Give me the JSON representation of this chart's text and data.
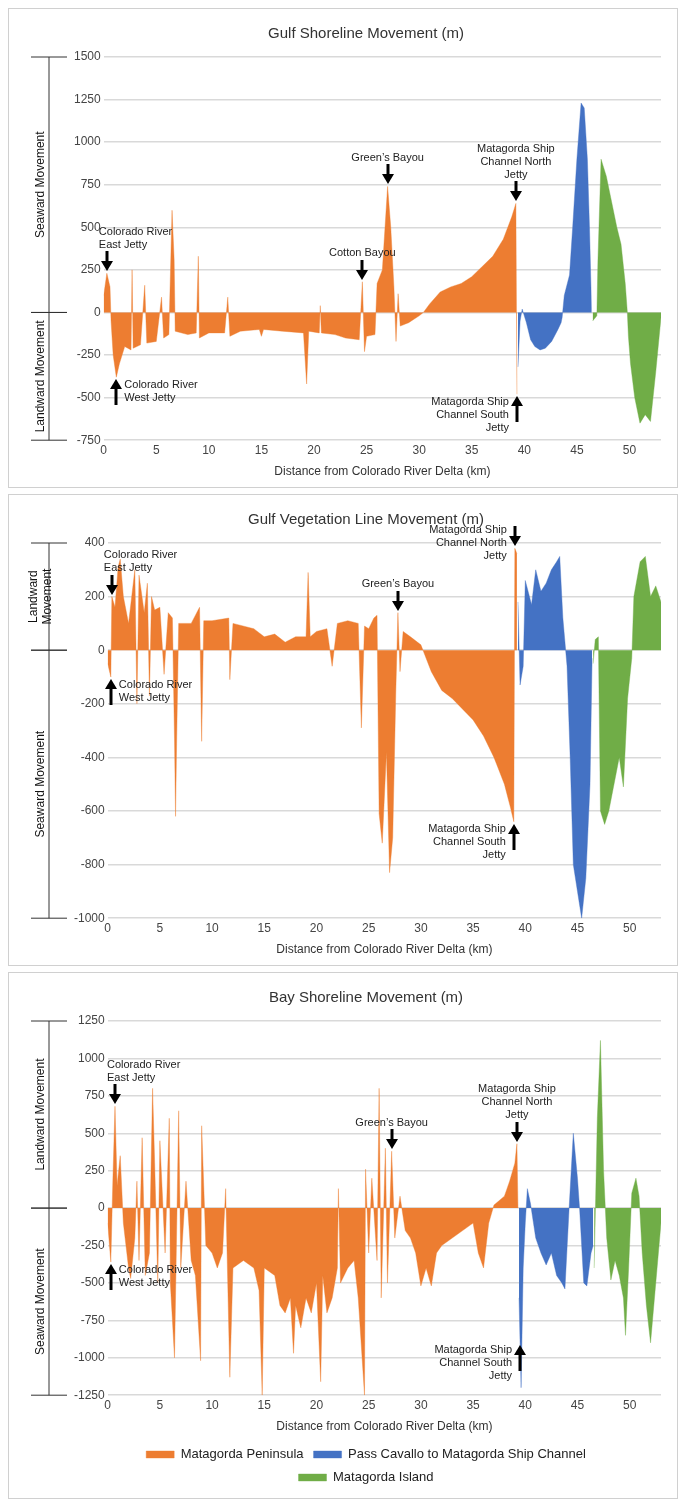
{
  "chart_data": [
    {
      "type": "area",
      "title": "Gulf Shoreline Movement (m)",
      "xlabel": "Distance from Colorado River Delta (km)",
      "xlim": [
        0,
        53
      ],
      "xticks": [
        0,
        5,
        10,
        15,
        20,
        25,
        30,
        35,
        40,
        45,
        50
      ],
      "ylim": [
        -750,
        1500
      ],
      "yticks": [
        -750,
        -500,
        -250,
        0,
        250,
        500,
        750,
        1000,
        1250,
        1500
      ],
      "grid": "y",
      "legend": false,
      "series": [
        {
          "color": "#ed7d31",
          "x": [
            0,
            0.3,
            0.6,
            0.7,
            0.9,
            1.2,
            1.5,
            2,
            2.6,
            2.7,
            2.8,
            3.5,
            3.9,
            4.1,
            5,
            5.5,
            5.7,
            6.2,
            6.5,
            6.7,
            6.8,
            8,
            8.8,
            9,
            9.1,
            10,
            11.5,
            11.8,
            12,
            13,
            14.8,
            15,
            15.2,
            17,
            19,
            19.3,
            19.5,
            20.5,
            20.6,
            20.7,
            22,
            23,
            24.3,
            24.6,
            24.8,
            25,
            25.8,
            26,
            26.5,
            27,
            27.3,
            27.6,
            27.8,
            28,
            28.2,
            29,
            30,
            30.4,
            31,
            32,
            33,
            34,
            35,
            36,
            37,
            38,
            38.8,
            39.2,
            39.3
          ],
          "values": [
            100,
            230,
            150,
            -50,
            -250,
            -380,
            -300,
            -200,
            -220,
            250,
            -210,
            -190,
            160,
            -180,
            -170,
            90,
            -150,
            -130,
            600,
            310,
            -110,
            -130,
            -120,
            330,
            -150,
            -120,
            -120,
            90,
            -140,
            -110,
            -100,
            -140,
            -100,
            -110,
            -120,
            -420,
            -110,
            -120,
            40,
            -120,
            -130,
            -150,
            -160,
            180,
            -230,
            -140,
            -130,
            170,
            250,
            740,
            500,
            150,
            -170,
            110,
            -80,
            -60,
            -20,
            0,
            50,
            120,
            150,
            170,
            210,
            270,
            330,
            430,
            560,
            640,
            -480
          ]
        },
        {
          "color": "#4472c4",
          "x": [
            39.4,
            39.6,
            39.8,
            40.2,
            40.6,
            41,
            41.5,
            42,
            42.6,
            43.2,
            43.5,
            43.6,
            43.8,
            44.3,
            44.6,
            45,
            45.4,
            45.7,
            46,
            46.2,
            46.4
          ],
          "values": [
            -320,
            -50,
            20,
            -60,
            -160,
            -200,
            -220,
            -210,
            -170,
            -100,
            -60,
            -30,
            100,
            220,
            500,
            900,
            1230,
            1200,
            900,
            500,
            0
          ]
        },
        {
          "color": "#70ad47",
          "x": [
            46.5,
            46.9,
            47,
            47.3,
            47.8,
            48.3,
            48.8,
            49.2,
            49.6,
            49.8,
            49.9,
            50.1,
            50.5,
            51,
            51.5,
            52,
            52.5,
            53
          ],
          "values": [
            -50,
            -20,
            300,
            900,
            800,
            650,
            500,
            400,
            170,
            0,
            -140,
            -300,
            -500,
            -650,
            -600,
            -640,
            -350,
            -30
          ]
        }
      ],
      "annotations": [
        "Seaward Movement",
        "Landward Movement",
        {
          "text": "Colorado River East Jetty",
          "x": 0.3,
          "y": 230
        },
        {
          "text": "Colorado River West Jetty",
          "x": 1.2,
          "y": -380
        },
        {
          "text": "Cotton Bayou",
          "x": 24.6,
          "y": 180
        },
        {
          "text": "Green’s Bayou",
          "x": 27,
          "y": 740
        },
        {
          "text": "Matagorda Ship Channel North Jetty",
          "x": 39.2,
          "y": 640
        },
        {
          "text": "Matagorda Ship Channel South Jetty",
          "x": 39.3,
          "y": -480
        }
      ]
    },
    {
      "type": "area",
      "title": "Gulf Vegetation Line Movement (m)",
      "xlabel": "Distance from Colorado River Delta (km)",
      "xlim": [
        0,
        53
      ],
      "xticks": [
        0,
        5,
        10,
        15,
        20,
        25,
        30,
        35,
        40,
        45,
        50
      ],
      "ylim": [
        -1000,
        400
      ],
      "yticks": [
        -1000,
        -800,
        -600,
        -400,
        -200,
        0,
        200,
        400
      ],
      "grid": "y",
      "legend": false,
      "series": [
        {
          "color": "#ed7d31",
          "x": [
            0,
            0.3,
            0.4,
            0.7,
            1,
            1.2,
            1.5,
            2,
            2.6,
            2.8,
            3,
            3.5,
            3.8,
            4,
            4.2,
            4.5,
            5,
            5.4,
            5.8,
            6.2,
            6.4,
            6.5,
            6.6,
            6.8,
            8,
            8.8,
            9,
            9.2,
            10,
            11.6,
            11.7,
            12,
            14,
            15,
            16,
            17,
            18,
            19,
            19.2,
            19.4,
            20,
            21,
            21.5,
            22,
            23,
            24,
            24.3,
            24.6,
            25,
            25.5,
            25.8,
            26,
            26.3,
            26.7,
            27,
            27.3,
            27.6,
            27.8,
            28,
            28.3,
            29,
            30,
            30.5,
            31,
            32,
            33,
            34,
            35,
            36,
            37,
            38,
            38.6,
            38.9,
            39,
            39.2
          ],
          "values": [
            -50,
            -100,
            200,
            160,
            310,
            340,
            200,
            100,
            300,
            -200,
            280,
            140,
            250,
            -170,
            200,
            150,
            160,
            -90,
            140,
            120,
            -330,
            -620,
            -350,
            100,
            100,
            160,
            -340,
            110,
            110,
            120,
            -110,
            100,
            80,
            50,
            60,
            30,
            50,
            50,
            290,
            50,
            70,
            80,
            -60,
            100,
            110,
            100,
            -290,
            90,
            80,
            120,
            130,
            -610,
            -720,
            -380,
            -830,
            -700,
            -150,
            140,
            -80,
            70,
            50,
            20,
            -30,
            -80,
            -150,
            -180,
            -220,
            -260,
            -320,
            -400,
            -500,
            -590,
            -640,
            380,
            360
          ]
        },
        {
          "color": "#4472c4",
          "x": [
            39.3,
            39.5,
            39.8,
            40,
            40.6,
            41,
            41.5,
            42,
            42.5,
            43,
            43.3,
            43.6,
            44,
            44.3,
            44.6,
            45,
            45.4,
            45.8,
            46.2,
            46.4
          ],
          "values": [
            180,
            -130,
            -60,
            260,
            170,
            300,
            220,
            250,
            300,
            330,
            350,
            120,
            -60,
            -400,
            -800,
            -900,
            -1000,
            -850,
            -500,
            -30
          ]
        },
        {
          "color": "#70ad47",
          "x": [
            46.5,
            46.7,
            47,
            47.2,
            47.6,
            48,
            48.5,
            49,
            49.4,
            49.8,
            50.2,
            50.4,
            51,
            51.5,
            52,
            52.5,
            53
          ],
          "values": [
            -50,
            40,
            50,
            -600,
            -650,
            -600,
            -500,
            -400,
            -510,
            -180,
            -30,
            200,
            330,
            350,
            200,
            240,
            180
          ]
        }
      ],
      "annotations": [
        "Landward Movement",
        "Seaward Movement",
        {
          "text": "Colorado River East Jetty",
          "x": 0.4,
          "y": 200
        },
        {
          "text": "Colorado River West Jetty",
          "x": 0.3,
          "y": -100
        },
        {
          "text": "Green’s Bayou",
          "x": 27.8,
          "y": 140
        },
        {
          "text": "Matagorda Ship Channel North Jetty",
          "x": 39,
          "y": 380
        },
        {
          "text": "Matagorda Ship Channel South Jetty",
          "x": 38.9,
          "y": -640
        }
      ]
    },
    {
      "type": "area",
      "title": "Bay Shoreline Movement (m)",
      "xlabel": "Distance from Colorado River Delta (km)",
      "xlim": [
        0,
        53
      ],
      "xticks": [
        0,
        5,
        10,
        15,
        20,
        25,
        30,
        35,
        40,
        45,
        50
      ],
      "ylim": [
        -1250,
        1250
      ],
      "yticks": [
        -1250,
        -1000,
        -750,
        -500,
        -250,
        0,
        250,
        500,
        750,
        1000,
        1250
      ],
      "grid": "y",
      "legend": "bottom",
      "series": [
        {
          "name": "Matagorda Peninsula",
          "color": "#ed7d31",
          "x": [
            0,
            0.3,
            0.5,
            0.7,
            0.9,
            1.2,
            1.5,
            2,
            2.2,
            2.6,
            2.8,
            3,
            3.3,
            3.6,
            4,
            4.3,
            4.5,
            4.8,
            5,
            5.5,
            5.9,
            6,
            6.4,
            6.8,
            7,
            7.5,
            8,
            8.4,
            8.9,
            9,
            9.4,
            10,
            10.5,
            11,
            11.3,
            11.7,
            12,
            13,
            14,
            14.5,
            14.8,
            15,
            16,
            16.5,
            17,
            17.5,
            17.8,
            18,
            18.5,
            19,
            19.5,
            20,
            20.4,
            20.6,
            21,
            21.5,
            22,
            22.1,
            22.3,
            23,
            23.6,
            24,
            24.6,
            24.7,
            25,
            25.3,
            25.8,
            26,
            26.2,
            26.6,
            26.8,
            27.2,
            27.5,
            28,
            28.5,
            29,
            29.5,
            30,
            30.5,
            31,
            31.5,
            32,
            33,
            34,
            35,
            35.5,
            36,
            36.5,
            37,
            38,
            38.5,
            39,
            39.2,
            39.3
          ],
          "values": [
            -100,
            -360,
            200,
            680,
            150,
            350,
            -100,
            -400,
            -470,
            -200,
            180,
            -350,
            470,
            -450,
            -300,
            800,
            300,
            -500,
            450,
            -300,
            600,
            -500,
            -1000,
            650,
            -400,
            180,
            -350,
            -450,
            -1020,
            550,
            -250,
            -300,
            -400,
            -300,
            130,
            -1130,
            -400,
            -350,
            -400,
            -550,
            -1250,
            -400,
            -450,
            -650,
            -700,
            -600,
            -970,
            -650,
            -800,
            -600,
            -700,
            -500,
            -1160,
            -450,
            -700,
            -600,
            -400,
            130,
            -500,
            -400,
            -350,
            -600,
            -1250,
            260,
            -300,
            200,
            -350,
            800,
            -600,
            400,
            -500,
            380,
            -200,
            80,
            -150,
            -200,
            -300,
            -520,
            -400,
            -520,
            -300,
            -250,
            -200,
            -150,
            -100,
            -300,
            -400,
            -100,
            20,
            80,
            180,
            300,
            430,
            0
          ]
        },
        {
          "name": "Pass Cavallo to Matagorda Ship Channel",
          "color": "#4472c4",
          "x": [
            39.4,
            39.6,
            39.8,
            40,
            40.2,
            40.5,
            41,
            41.5,
            42,
            42.5,
            43,
            43.5,
            43.8,
            44.2,
            44.6,
            45,
            45.2,
            45.6,
            45.9,
            46.3,
            46.5
          ],
          "values": [
            -600,
            -1200,
            -400,
            -100,
            130,
            30,
            -200,
            -300,
            -380,
            -300,
            -450,
            -500,
            -540,
            0,
            500,
            200,
            0,
            -500,
            -520,
            -300,
            -250
          ]
        },
        {
          "name": "Matagorda Island",
          "color": "#70ad47",
          "x": [
            46.6,
            46.9,
            47.2,
            47.5,
            47.8,
            48.2,
            48.6,
            49,
            49.4,
            49.6,
            49.9,
            50.2,
            50.6,
            50.9,
            51.2,
            51.6,
            52,
            52.5,
            53
          ],
          "values": [
            -400,
            600,
            1120,
            250,
            -200,
            -480,
            -350,
            -450,
            -600,
            -850,
            -400,
            100,
            200,
            80,
            -300,
            -650,
            -900,
            -500,
            -100
          ]
        }
      ],
      "annotations": [
        "Landward Movement",
        "Seaward Movement",
        {
          "text": "Colorado River East Jetty",
          "x": 0.7,
          "y": 680
        },
        {
          "text": "Colorado River West Jetty",
          "x": 0.3,
          "y": -360
        },
        {
          "text": "Green’s Bayou",
          "x": 27.2,
          "y": 380
        },
        {
          "text": "Matagorda Ship Channel North Jetty",
          "x": 39.2,
          "y": 430
        },
        {
          "text": "Matagorda Ship Channel South Jetty",
          "x": 39.5,
          "y": -900
        }
      ]
    }
  ]
}
